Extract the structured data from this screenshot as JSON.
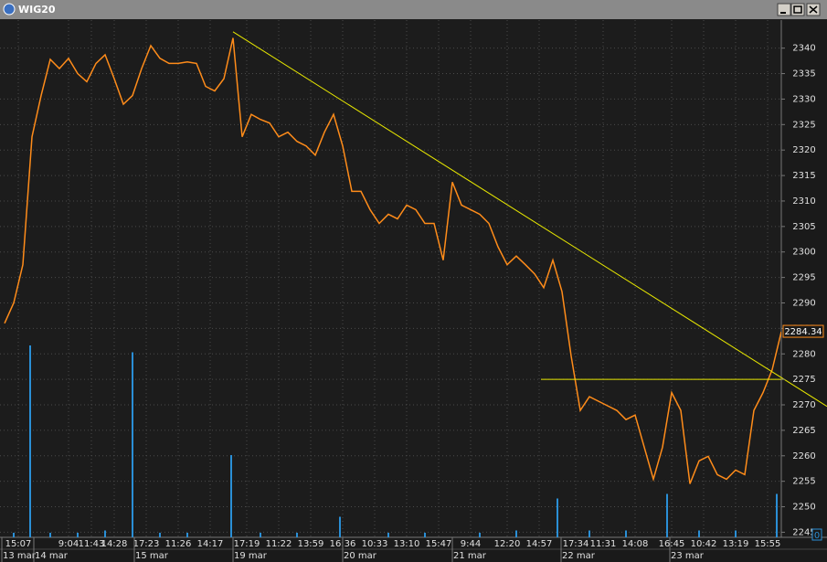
{
  "window_title": "WIG20",
  "chart_data": {
    "type": "line",
    "title": "WIG20",
    "x": [
      0,
      1,
      2,
      3,
      4,
      5,
      6,
      7,
      8,
      9,
      10,
      11,
      12,
      13,
      14,
      15,
      16,
      17,
      18,
      19,
      20,
      21,
      22,
      23,
      24,
      25,
      26,
      27,
      28,
      29,
      30,
      31,
      32,
      33,
      34,
      35,
      36,
      37,
      38,
      39,
      40,
      41,
      42,
      43,
      44,
      45,
      46,
      47,
      48,
      49,
      50,
      51,
      52,
      53,
      54,
      55,
      56,
      57,
      58,
      59,
      60,
      61,
      62,
      63,
      64,
      65,
      66,
      67,
      68,
      69,
      70,
      71,
      72,
      73,
      74,
      75,
      76,
      77,
      78,
      79,
      80,
      81,
      82,
      83,
      84,
      85
    ],
    "series": [
      {
        "color": "#ff8c1a",
        "values": [
          2286,
          2290,
          2297.5,
          2322.6,
          2330.7,
          2337.8,
          2336,
          2338,
          2335,
          2333.4,
          2337,
          2338.7,
          2334,
          2329,
          2330.7,
          2336,
          2340.5,
          2338,
          2337,
          2337,
          2337.3,
          2337,
          2332.5,
          2331.6,
          2334,
          2342,
          2322.6,
          2327,
          2326,
          2325.3,
          2322.6,
          2323.5,
          2321.7,
          2320.8,
          2319,
          2323.5,
          2327,
          2320.8,
          2311.9,
          2311.9,
          2308.3,
          2305.6,
          2307.4,
          2306.5,
          2309.2,
          2308.3,
          2305.6,
          2305.6,
          2298.4,
          2313.7,
          2309.2,
          2308.3,
          2307.4,
          2305.6,
          2301,
          2297.5,
          2299.2,
          2297.5,
          2295.7,
          2293,
          2298.4,
          2292.2,
          2279.6,
          2268.9,
          2271.6,
          2270.7,
          2269.8,
          2268.9,
          2267.1,
          2268,
          2261.7,
          2255.4,
          2261.7,
          2272.4,
          2268.9,
          2254.5,
          2259,
          2259.9,
          2256.3,
          2255.4,
          2257.2,
          2256.3,
          2268.9,
          2272.4,
          2276.9,
          2284.34
        ]
      }
    ],
    "last_value_label": "2284.34",
    "xlim": [
      0,
      85
    ],
    "ylim": [
      2244,
      2345.5
    ],
    "yticks": [
      2245,
      2250,
      2255,
      2260,
      2265,
      2270,
      2275,
      2280,
      2285,
      2290,
      2295,
      2300,
      2305,
      2310,
      2315,
      2320,
      2325,
      2330,
      2335,
      2340
    ],
    "xticks": [
      {
        "value": 1.5,
        "label": "15:07"
      },
      {
        "value": 7,
        "label": "9:04"
      },
      {
        "value": 9.5,
        "label": "11:43"
      },
      {
        "value": 12,
        "label": "14:28"
      },
      {
        "value": 15.5,
        "label": "17:23"
      },
      {
        "value": 19,
        "label": "11:26"
      },
      {
        "value": 22.5,
        "label": "14:17"
      },
      {
        "value": 26.5,
        "label": "17:19"
      },
      {
        "value": 30,
        "label": "11:22"
      },
      {
        "value": 33.5,
        "label": "13:59"
      },
      {
        "value": 37,
        "label": "16:36"
      },
      {
        "value": 40.5,
        "label": "10:33"
      },
      {
        "value": 44,
        "label": "13:10"
      },
      {
        "value": 47.5,
        "label": "15:47"
      },
      {
        "value": 51,
        "label": "9:44"
      },
      {
        "value": 55,
        "label": "12:20"
      },
      {
        "value": 58.5,
        "label": "14:57"
      },
      {
        "value": 62.5,
        "label": "17:34"
      },
      {
        "value": 65.5,
        "label": "11:31"
      },
      {
        "value": 69,
        "label": "14:08"
      },
      {
        "value": 73,
        "label": "16:45"
      },
      {
        "value": 76.5,
        "label": "10:42"
      },
      {
        "value": 80,
        "label": "13:19"
      },
      {
        "value": 83.5,
        "label": "15:55"
      }
    ],
    "date_ticks": [
      {
        "value": -0.3,
        "label": "13 mar"
      },
      {
        "value": 3.2,
        "label": "14 mar"
      },
      {
        "value": 14.2,
        "label": "15 mar"
      },
      {
        "value": 25,
        "label": "19 mar"
      },
      {
        "value": 37,
        "label": "20 mar"
      },
      {
        "value": 49,
        "label": "21 mar"
      },
      {
        "value": 60.9,
        "label": "22 mar"
      },
      {
        "value": 72.8,
        "label": "23 mar"
      }
    ],
    "grid": true,
    "volume": {
      "color": "#2a8fd6",
      "x": [
        1,
        2.8,
        5,
        8,
        11,
        14,
        17,
        20,
        24.8,
        28,
        32,
        36.7,
        42,
        46,
        52,
        56,
        60.5,
        64,
        68,
        72.5,
        76,
        80,
        84.5
      ],
      "values": [
        2,
        84,
        2,
        2,
        3,
        81,
        2,
        2,
        36,
        2,
        2,
        9,
        2,
        2,
        2,
        3,
        17,
        3,
        3,
        19,
        3,
        3,
        19
      ],
      "vlim": [
        0,
        100
      ],
      "vticks": [
        0
      ]
    },
    "trendlines": [
      {
        "color": "#e8e800",
        "x": [
          25,
          90
        ],
        "y": [
          2343.2,
          2269.7
        ]
      },
      {
        "color": "#e8e800",
        "x": [
          58.7,
          85.3
        ],
        "y": [
          2275,
          2275
        ]
      }
    ]
  }
}
